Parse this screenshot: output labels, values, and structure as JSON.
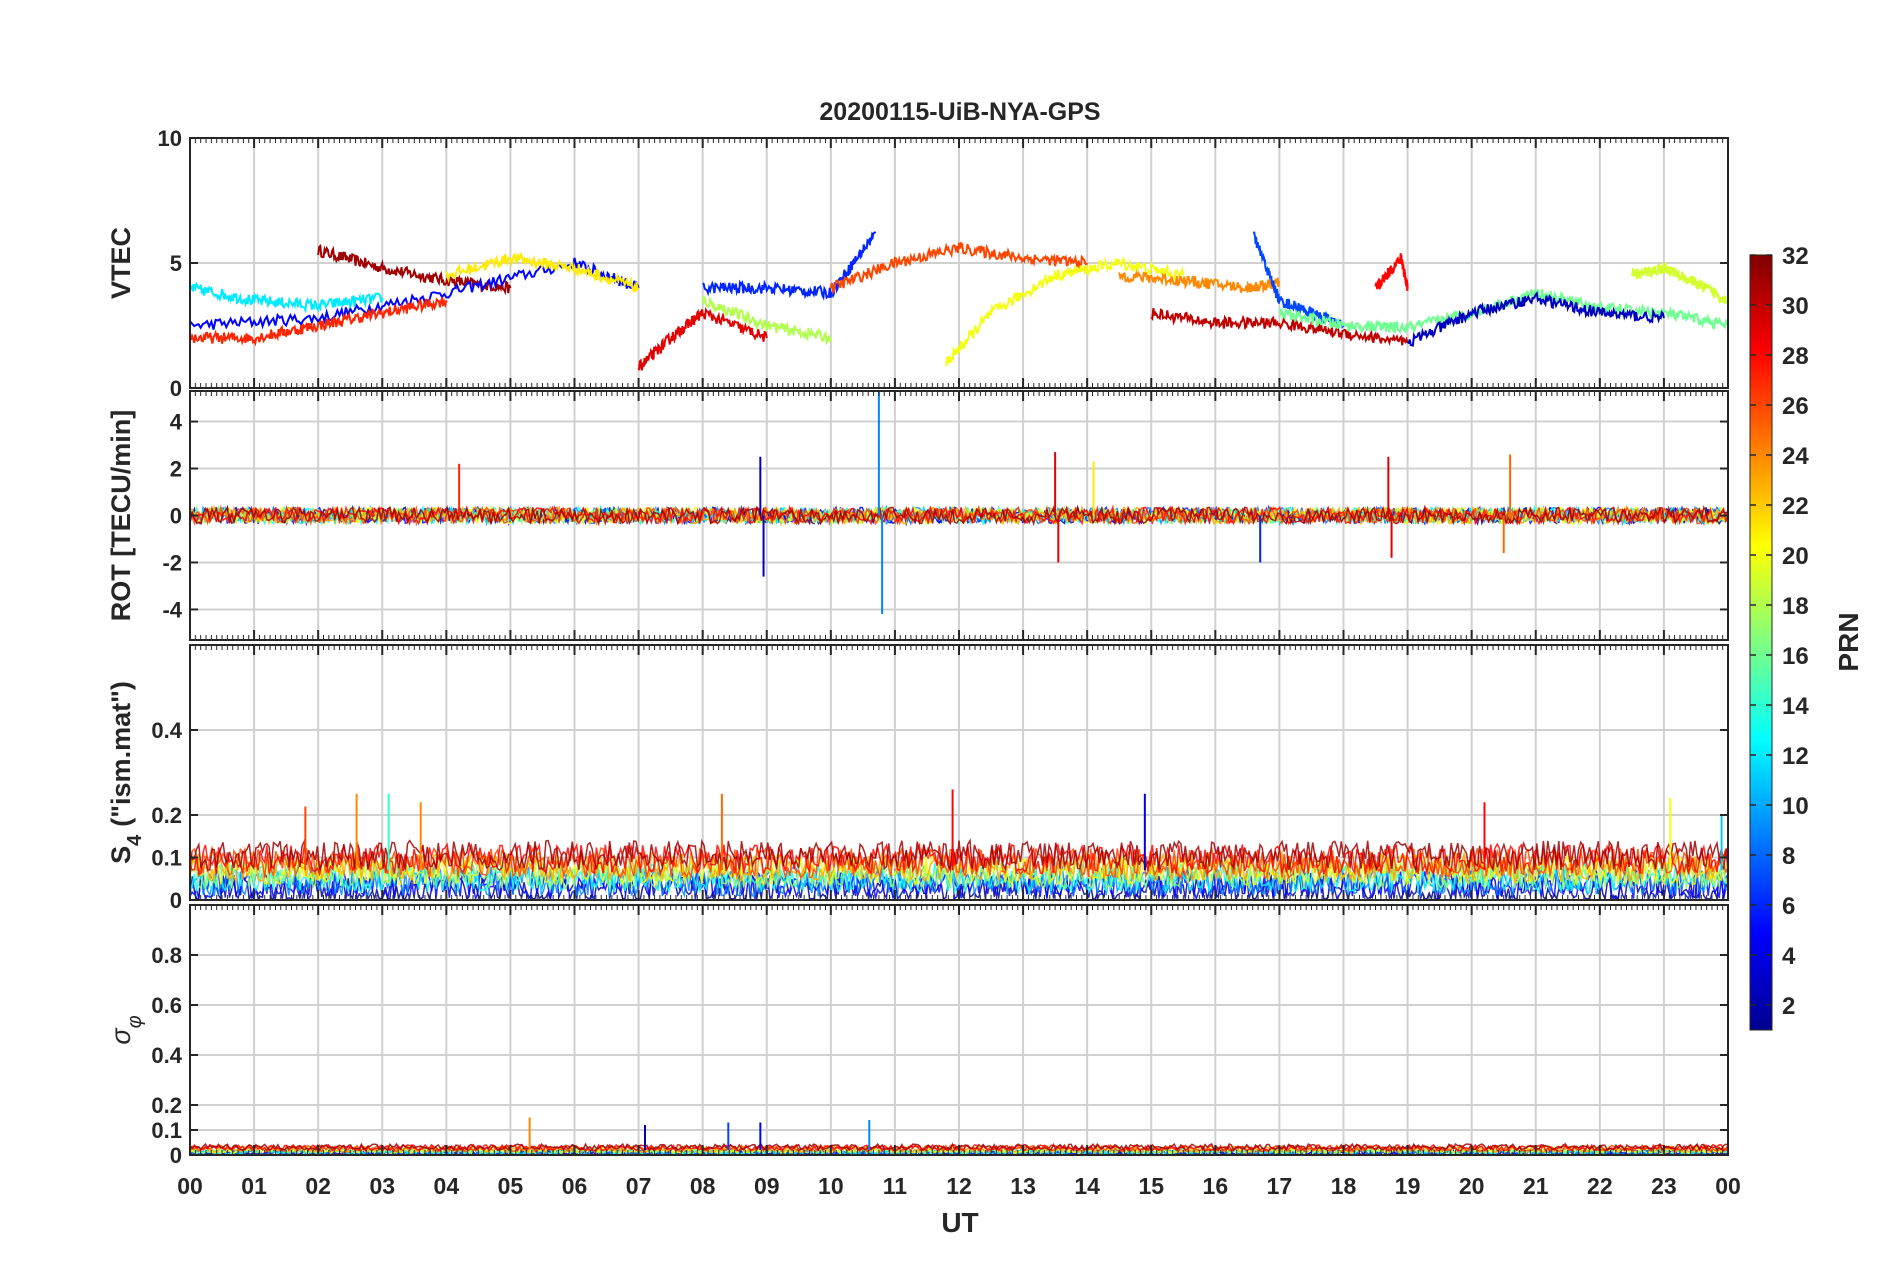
{
  "figure": {
    "title": "20200115-UiB-NYA-GPS",
    "xlabel": "UT",
    "x_ticks": [
      "00",
      "01",
      "02",
      "03",
      "04",
      "05",
      "06",
      "07",
      "08",
      "09",
      "10",
      "11",
      "12",
      "13",
      "14",
      "15",
      "16",
      "17",
      "18",
      "19",
      "20",
      "21",
      "22",
      "23",
      "00"
    ]
  },
  "colorbar": {
    "label": "PRN",
    "range": [
      1,
      32
    ],
    "ticks": [
      2,
      4,
      6,
      8,
      10,
      12,
      14,
      16,
      18,
      20,
      22,
      24,
      26,
      28,
      30,
      32
    ],
    "colormap": "jet"
  },
  "chart_data": [
    {
      "type": "line",
      "panel": "vtec",
      "ylabel": "VTEC",
      "ylim": [
        0,
        10
      ],
      "yticks": [
        0,
        5,
        10
      ],
      "xlim": [
        0,
        24
      ],
      "grid": true,
      "series": [
        {
          "prn": 31,
          "x": [
            2.0,
            3.0,
            4.0,
            5.0
          ],
          "y": [
            5.5,
            4.8,
            4.3,
            4.0
          ]
        },
        {
          "prn": 5,
          "x": [
            0.0,
            2.0,
            4.0,
            6.0,
            7.0
          ],
          "y": [
            2.5,
            2.8,
            3.8,
            5.0,
            4.0
          ]
        },
        {
          "prn": 12,
          "x": [
            0.0,
            1.0,
            2.0,
            3.0
          ],
          "y": [
            4.0,
            3.5,
            3.3,
            3.6
          ]
        },
        {
          "prn": 27,
          "x": [
            0.0,
            1.0,
            2.0,
            3.0,
            4.0
          ],
          "y": [
            2.0,
            2.0,
            2.5,
            3.0,
            3.5
          ]
        },
        {
          "prn": 21,
          "x": [
            4.0,
            5.0,
            6.0,
            7.0
          ],
          "y": [
            4.5,
            5.2,
            4.8,
            4.0
          ]
        },
        {
          "prn": 29,
          "x": [
            7.0,
            7.5,
            8.0,
            9.0
          ],
          "y": [
            0.8,
            2.0,
            3.0,
            2.0
          ]
        },
        {
          "prn": 6,
          "x": [
            8.0,
            9.0,
            10.0,
            10.7
          ],
          "y": [
            4.0,
            4.0,
            3.8,
            6.2
          ]
        },
        {
          "prn": 18,
          "x": [
            8.0,
            9.0,
            10.0
          ],
          "y": [
            3.5,
            2.5,
            2.0
          ]
        },
        {
          "prn": 26,
          "x": [
            10.0,
            11.0,
            12.0,
            13.0,
            14.0
          ],
          "y": [
            4.0,
            5.0,
            5.6,
            5.2,
            5.0
          ]
        },
        {
          "prn": 20,
          "x": [
            11.8,
            12.5,
            13.5,
            14.5,
            15.5
          ],
          "y": [
            1.0,
            3.0,
            4.5,
            5.0,
            4.5
          ]
        },
        {
          "prn": 24,
          "x": [
            14.5,
            15.5,
            16.5,
            17.0
          ],
          "y": [
            4.5,
            4.3,
            4.0,
            4.2
          ]
        },
        {
          "prn": 7,
          "x": [
            16.6,
            17.0,
            17.5,
            18.0
          ],
          "y": [
            6.1,
            3.5,
            3.0,
            2.5
          ]
        },
        {
          "prn": 30,
          "x": [
            15.0,
            16.0,
            17.0,
            18.0,
            19.0
          ],
          "y": [
            3.0,
            2.6,
            2.6,
            2.2,
            1.8
          ]
        },
        {
          "prn": 28,
          "x": [
            18.5,
            18.9,
            19.0
          ],
          "y": [
            4.0,
            5.2,
            4.0
          ]
        },
        {
          "prn": 16,
          "x": [
            17.0,
            18.0,
            19.0,
            20.0,
            21.0,
            22.0,
            23.0,
            24.0
          ],
          "y": [
            3.0,
            2.5,
            2.4,
            3.0,
            3.8,
            3.2,
            3.0,
            2.5
          ]
        },
        {
          "prn": 19,
          "x": [
            22.5,
            23.0,
            23.5,
            24.0
          ],
          "y": [
            4.5,
            4.8,
            4.2,
            3.5
          ]
        },
        {
          "prn": 3,
          "x": [
            19.0,
            20.0,
            21.0,
            22.0,
            23.0
          ],
          "y": [
            1.8,
            3.0,
            3.6,
            3.0,
            2.8
          ]
        }
      ]
    },
    {
      "type": "line",
      "panel": "rot",
      "ylabel": "ROT [TECU/min]",
      "ylim": [
        -5.3,
        5.3
      ],
      "yticks": [
        -4,
        -2,
        0,
        2,
        4
      ],
      "xlim": [
        0,
        24
      ],
      "grid": true,
      "spikes": [
        {
          "prn": 27,
          "x": 4.2,
          "y": 2.2
        },
        {
          "prn": 3,
          "x": 8.9,
          "y": 2.5
        },
        {
          "prn": 3,
          "x": 8.95,
          "y": -2.6
        },
        {
          "prn": 9,
          "x": 10.75,
          "y": 5.3
        },
        {
          "prn": 9,
          "x": 10.8,
          "y": -4.2
        },
        {
          "prn": 29,
          "x": 13.5,
          "y": 2.7
        },
        {
          "prn": 29,
          "x": 13.55,
          "y": -2.0
        },
        {
          "prn": 21,
          "x": 14.1,
          "y": 2.3
        },
        {
          "prn": 6,
          "x": 16.7,
          "y": -2.0
        },
        {
          "prn": 29,
          "x": 18.7,
          "y": 2.5
        },
        {
          "prn": 29,
          "x": 18.75,
          "y": -1.8
        },
        {
          "prn": 25,
          "x": 20.6,
          "y": 2.6
        },
        {
          "prn": 25,
          "x": 20.5,
          "y": -1.6
        }
      ]
    },
    {
      "type": "line",
      "panel": "s4",
      "ylabel": "S4 (\"ism.mat\")",
      "ylabel_main": "S",
      "ylabel_sub": "4",
      "ylabel_rest": "(\"ism.mat\")",
      "ylim": [
        0,
        0.6
      ],
      "yticks": [
        0,
        0.1,
        0.2,
        0.4
      ],
      "xlim": [
        0,
        24
      ],
      "grid": true,
      "base_level": 0.07,
      "spikes": [
        {
          "prn": 26,
          "x": 1.8,
          "y": 0.22
        },
        {
          "prn": 24,
          "x": 2.6,
          "y": 0.25
        },
        {
          "prn": 14,
          "x": 3.1,
          "y": 0.25
        },
        {
          "prn": 24,
          "x": 3.6,
          "y": 0.23
        },
        {
          "prn": 25,
          "x": 8.3,
          "y": 0.25
        },
        {
          "prn": 28,
          "x": 11.9,
          "y": 0.26
        },
        {
          "prn": 4,
          "x": 14.9,
          "y": 0.25
        },
        {
          "prn": 28,
          "x": 20.2,
          "y": 0.23
        },
        {
          "prn": 20,
          "x": 23.1,
          "y": 0.24
        },
        {
          "prn": 11,
          "x": 23.9,
          "y": 0.2
        }
      ]
    },
    {
      "type": "line",
      "panel": "sigma",
      "ylabel": "σφ",
      "ylabel_main": "σ",
      "ylabel_sub": "φ",
      "ylim": [
        0,
        1
      ],
      "yticks": [
        0,
        0.1,
        0.2,
        0.4,
        0.6,
        0.8
      ],
      "xlim": [
        0,
        24
      ],
      "grid": true,
      "base_level": 0.02,
      "spikes": [
        {
          "prn": 24,
          "x": 5.3,
          "y": 0.15
        },
        {
          "prn": 3,
          "x": 7.1,
          "y": 0.12
        },
        {
          "prn": 7,
          "x": 8.4,
          "y": 0.13
        },
        {
          "prn": 5,
          "x": 8.9,
          "y": 0.13
        },
        {
          "prn": 9,
          "x": 10.6,
          "y": 0.14
        }
      ]
    }
  ]
}
